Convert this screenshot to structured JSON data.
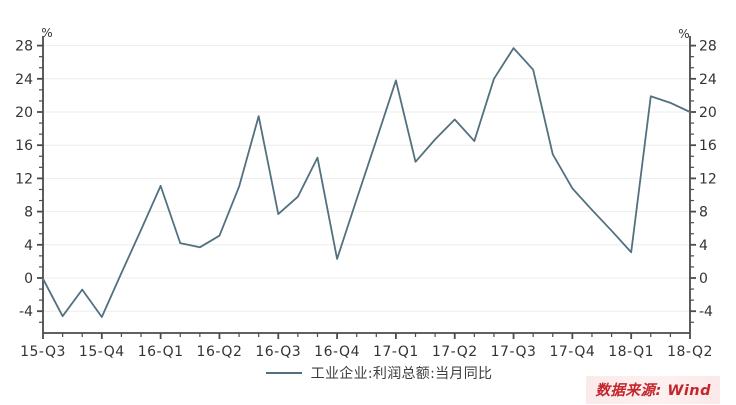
{
  "chart": {
    "unit_left": "%",
    "unit_right": "%",
    "legend": {
      "label": "工业企业:利润总额:当月同比"
    },
    "source": {
      "label": "数据来源: Wind"
    }
  },
  "chart_data": {
    "type": "line",
    "title": "",
    "xlabel": "",
    "ylabel": "%",
    "x": [
      "2015-09",
      "2015-10",
      "2015-11",
      "2015-12",
      "2016-01",
      "2016-02",
      "2016-03",
      "2016-04",
      "2016-05",
      "2016-06",
      "2016-07",
      "2016-08",
      "2016-09",
      "2016-10",
      "2016-11",
      "2016-12",
      "2017-01",
      "2017-02",
      "2017-03",
      "2017-04",
      "2017-05",
      "2017-06",
      "2017-07",
      "2017-08",
      "2017-09",
      "2017-10",
      "2017-11",
      "2017-12",
      "2018-01",
      "2018-02",
      "2018-03",
      "2018-04",
      "2018-05",
      "2018-06"
    ],
    "series": [
      {
        "name": "工业企业:利润总额:当月同比",
        "color": "#53707f",
        "values": [
          -0.1,
          -4.6,
          -1.4,
          -4.7,
          0.6,
          5.8,
          11.1,
          4.2,
          3.7,
          5.1,
          11.0,
          19.5,
          7.7,
          9.8,
          14.5,
          2.3,
          9.5,
          16.6,
          23.8,
          14.0,
          16.7,
          19.1,
          16.5,
          24.0,
          27.7,
          25.1,
          14.9,
          10.8,
          8.2,
          5.7,
          3.1,
          21.9,
          21.1,
          20.0
        ]
      }
    ],
    "x_tick_labels": [
      "15-Q3",
      "15-Q4",
      "16-Q1",
      "16-Q2",
      "16-Q3",
      "16-Q4",
      "17-Q1",
      "17-Q2",
      "17-Q3",
      "17-Q4",
      "18-Q1",
      "18-Q2"
    ],
    "x_tick_positions": [
      0,
      3,
      6,
      9,
      12,
      15,
      18,
      21,
      24,
      27,
      30,
      33
    ],
    "y_ticks": [
      28,
      24,
      20,
      16,
      12,
      8,
      4,
      0,
      -4
    ],
    "y_axis_unit_left": "%",
    "y_axis_unit_right": "%",
    "ylim": [
      -6.6,
      29.2
    ],
    "grid": "horizontal-major",
    "legend_position": "bottom-center",
    "source_note": "数据来源: Wind"
  },
  "colors": {
    "line": "#53707f",
    "axis": "#4b4b4b",
    "gridline": "#ececec",
    "tick_label": "#343434",
    "source_red": "#c4262d"
  }
}
